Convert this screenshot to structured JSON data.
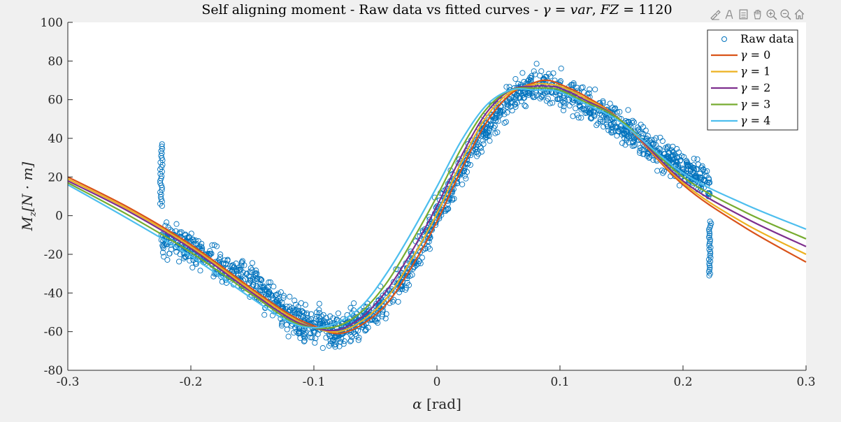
{
  "chart_data": {
    "type": "scatter",
    "title": "Self aligning moment - Raw data vs fitted curves - γ = var, FZ = 1120",
    "title_parts": {
      "prefix": "Self aligning moment - Raw data vs fitted curves - ",
      "gamma": "γ",
      "equals1": " = ",
      "var": "var",
      "comma": ", ",
      "fz": "FZ",
      "equals2": " = 1120"
    },
    "xlabel": "α [rad]",
    "xlabel_parts": {
      "alpha": "α",
      "unit": " [rad]"
    },
    "ylabel": "Mz[N · m]",
    "ylabel_parts": {
      "M": "M",
      "sub": "z",
      "rest": "[N · m]"
    },
    "xlim": [
      -0.3,
      0.3
    ],
    "ylim": [
      -80,
      100
    ],
    "xticks": [
      -0.3,
      -0.2,
      -0.1,
      0,
      0.1,
      0.2,
      0.3
    ],
    "xtick_labels": [
      "-0.3",
      "-0.2",
      "-0.1",
      "0",
      "0.1",
      "0.2",
      "0.3"
    ],
    "yticks": [
      -80,
      -60,
      -40,
      -20,
      0,
      20,
      40,
      60,
      80,
      100
    ],
    "ytick_labels": [
      "-80",
      "-60",
      "-40",
      "-20",
      "0",
      "20",
      "40",
      "60",
      "80",
      "100"
    ],
    "grid": false,
    "legend_position": "top-right",
    "raw_data": {
      "name": "Raw data",
      "color": "#0072BD",
      "marker": "circle",
      "trend": [
        [
          -0.224,
          -12
        ],
        [
          -0.2,
          -17
        ],
        [
          -0.15,
          -35
        ],
        [
          -0.12,
          -52
        ],
        [
          -0.1,
          -57
        ],
        [
          -0.08,
          -60
        ],
        [
          -0.06,
          -54
        ],
        [
          -0.04,
          -44
        ],
        [
          -0.02,
          -26
        ],
        [
          0,
          0
        ],
        [
          0.02,
          24
        ],
        [
          0.04,
          45
        ],
        [
          0.06,
          61
        ],
        [
          0.08,
          67
        ],
        [
          0.1,
          65
        ],
        [
          0.12,
          59
        ],
        [
          0.15,
          47
        ],
        [
          0.18,
          33
        ],
        [
          0.2,
          25
        ],
        [
          0.222,
          15
        ]
      ],
      "spikes": [
        {
          "x": -0.224,
          "y_from": 5,
          "y_to": 37
        },
        {
          "x": 0.222,
          "y_from": -31,
          "y_to": -3
        }
      ]
    },
    "series": [
      {
        "name": "γ = 0",
        "gamma_label": "γ",
        "value_label": " = 0",
        "color": "#D95319",
        "x": [
          -0.3,
          -0.25,
          -0.2,
          -0.15,
          -0.12,
          -0.1,
          -0.08,
          -0.06,
          -0.04,
          -0.02,
          0,
          0.02,
          0.04,
          0.06,
          0.08,
          0.09,
          0.1,
          0.12,
          0.15,
          0.2,
          0.25,
          0.3
        ],
        "y": [
          20,
          4,
          -15,
          -38,
          -51,
          -57,
          -61,
          -56,
          -45,
          -26,
          -3,
          24,
          48,
          63,
          69,
          70,
          68,
          62,
          49,
          16,
          -6,
          -24
        ]
      },
      {
        "name": "γ = 1",
        "gamma_label": "γ",
        "value_label": " = 1",
        "color": "#EDB120",
        "x": [
          -0.3,
          -0.25,
          -0.2,
          -0.15,
          -0.12,
          -0.1,
          -0.08,
          -0.06,
          -0.04,
          -0.02,
          0,
          0.02,
          0.04,
          0.06,
          0.08,
          0.09,
          0.1,
          0.12,
          0.15,
          0.2,
          0.25,
          0.3
        ],
        "y": [
          19,
          3,
          -16,
          -39,
          -52,
          -58,
          -60,
          -54,
          -42,
          -22,
          1,
          28,
          51,
          64,
          68,
          68,
          67,
          61,
          49,
          17,
          -4,
          -20
        ]
      },
      {
        "name": "γ = 2",
        "gamma_label": "γ",
        "value_label": " = 2",
        "color": "#7E2F8E",
        "x": [
          -0.3,
          -0.25,
          -0.2,
          -0.15,
          -0.12,
          -0.1,
          -0.08,
          -0.06,
          -0.04,
          -0.02,
          0,
          0.02,
          0.04,
          0.06,
          0.08,
          0.09,
          0.1,
          0.12,
          0.15,
          0.2,
          0.25,
          0.3
        ],
        "y": [
          18,
          2,
          -17,
          -40,
          -53,
          -58,
          -59,
          -52,
          -38,
          -18,
          5,
          31,
          53,
          65,
          67,
          67,
          66,
          60,
          49,
          18,
          -1,
          -16
        ]
      },
      {
        "name": "γ = 3",
        "gamma_label": "γ",
        "value_label": " = 3",
        "color": "#77AC30",
        "x": [
          -0.3,
          -0.25,
          -0.2,
          -0.15,
          -0.12,
          -0.1,
          -0.08,
          -0.06,
          -0.04,
          -0.02,
          0,
          0.02,
          0.04,
          0.06,
          0.08,
          0.09,
          0.1,
          0.12,
          0.15,
          0.2,
          0.25,
          0.3
        ],
        "y": [
          17,
          0,
          -19,
          -41,
          -54,
          -58,
          -57,
          -49,
          -34,
          -13,
          10,
          35,
          55,
          65,
          66,
          66,
          65,
          59,
          49,
          20,
          2,
          -12
        ]
      },
      {
        "name": "γ = 4",
        "gamma_label": "γ",
        "value_label": " = 4",
        "color": "#4DBEEE",
        "x": [
          -0.3,
          -0.25,
          -0.2,
          -0.15,
          -0.12,
          -0.1,
          -0.08,
          -0.06,
          -0.04,
          -0.02,
          0,
          0.02,
          0.04,
          0.06,
          0.08,
          0.09,
          0.1,
          0.12,
          0.15,
          0.2,
          0.25,
          0.3
        ],
        "y": [
          16,
          -2,
          -21,
          -43,
          -55,
          -58,
          -55,
          -46,
          -29,
          -8,
          15,
          39,
          57,
          65,
          65,
          65,
          64,
          58,
          48,
          22,
          6,
          -7
        ]
      }
    ]
  },
  "toolbar": {
    "icons": [
      "brush-icon",
      "datatip-icon",
      "export-icon",
      "pan-icon",
      "zoom-in-icon",
      "zoom-out-icon",
      "home-icon"
    ]
  }
}
